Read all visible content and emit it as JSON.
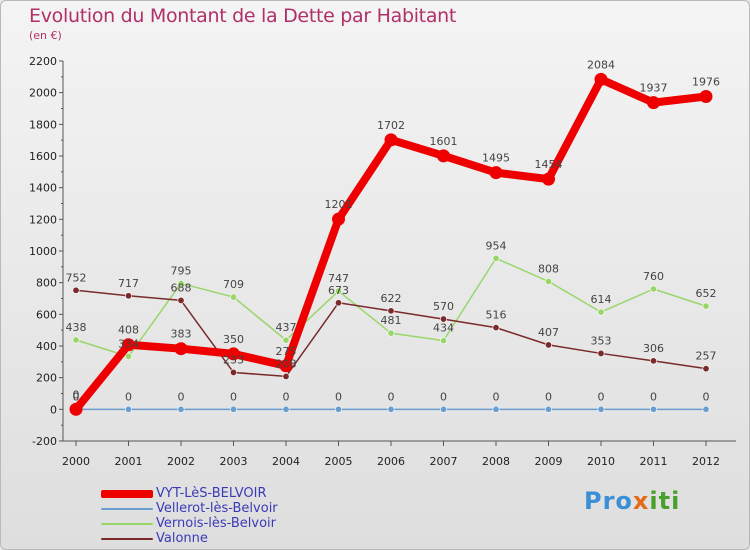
{
  "page": {
    "title": "Evolution du Montant de la Dette par Habitant",
    "subtitle": "(en €)",
    "logo": {
      "part1": "Pro",
      "part2": "x",
      "part3": "iti"
    }
  },
  "chart_data": {
    "type": "line",
    "title": "Evolution du Montant de la Dette par Habitant",
    "subtitle": "(en €)",
    "xlabel": "",
    "ylabel": "",
    "x": [
      "2000",
      "2001",
      "2002",
      "2003",
      "2004",
      "2005",
      "2006",
      "2007",
      "2008",
      "2009",
      "2010",
      "2011",
      "2012"
    ],
    "ylim": [
      -200,
      2200
    ],
    "yticks": [
      -200,
      0,
      200,
      400,
      600,
      800,
      1000,
      1200,
      1400,
      1600,
      1800,
      2000,
      2200
    ],
    "grid": false,
    "legend_position": "bottom-left",
    "series": [
      {
        "name": "VYT-LèS-BELVOIR",
        "color": "#ee0000",
        "width": 8,
        "values": [
          0,
          408,
          383,
          350,
          275,
          1201,
          1702,
          1601,
          1495,
          1454,
          2084,
          1937,
          1976
        ],
        "labels": [
          "0",
          "408",
          "383",
          "350",
          "275",
          "1201",
          "1702",
          "1601",
          "1495",
          "1454",
          "2084",
          "1937",
          "1976"
        ]
      },
      {
        "name": "Vellerot-lès-Belvoir",
        "color": "#6a9ed0",
        "width": 1.5,
        "values": [
          0,
          0,
          0,
          0,
          0,
          0,
          0,
          0,
          0,
          0,
          0,
          0,
          0
        ],
        "labels": [
          "0",
          "0",
          "0",
          "0",
          "0",
          "0",
          "0",
          "0",
          "0",
          "0",
          "0",
          "0",
          "0"
        ]
      },
      {
        "name": "Vernois-lès-Belvoir",
        "color": "#99d66a",
        "width": 1.5,
        "values": [
          438,
          334,
          795,
          709,
          437,
          747,
          481,
          434,
          954,
          808,
          614,
          760,
          652
        ],
        "labels": [
          "438",
          "334",
          "795",
          "709",
          "437",
          "747",
          "481",
          "434",
          "954",
          "808",
          "614",
          "760",
          "652"
        ]
      },
      {
        "name": "Valonne",
        "color": "#7a2a2a",
        "width": 1.5,
        "values": [
          752,
          717,
          688,
          233,
          208,
          673,
          622,
          570,
          516,
          407,
          353,
          306,
          257
        ],
        "labels": [
          "752",
          "717",
          "688",
          "233",
          "208",
          "673",
          "622",
          "570",
          "516",
          "407",
          "353",
          "306",
          "257"
        ]
      }
    ]
  }
}
